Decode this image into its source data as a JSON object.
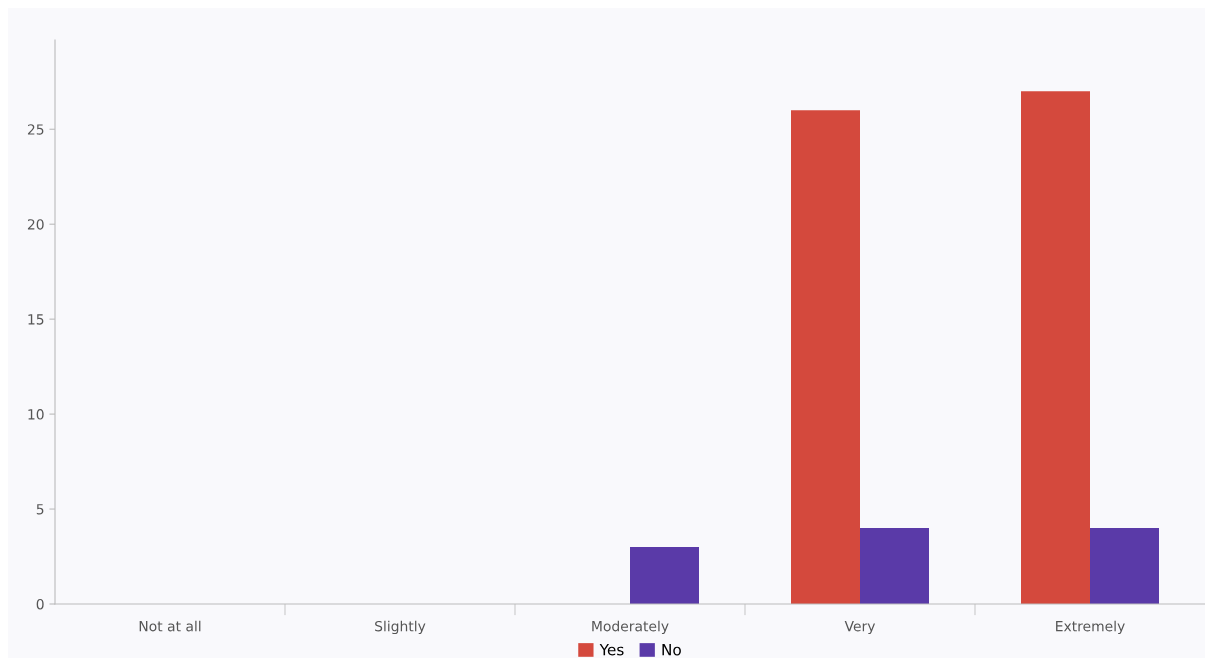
{
  "chart_data": {
    "type": "bar",
    "categories": [
      "Not at all",
      "Slightly",
      "Moderately",
      "Very",
      "Extremely"
    ],
    "series": [
      {
        "name": "Yes",
        "color": "#d4493d",
        "values": [
          0,
          0,
          0,
          26,
          27
        ]
      },
      {
        "name": "No",
        "color": "#5a3aa8",
        "values": [
          0,
          0,
          3,
          4,
          4
        ]
      }
    ],
    "ylim": [
      0,
      29.7
    ],
    "yticks": [
      0,
      5,
      10,
      15,
      20,
      25
    ],
    "grid": false,
    "legend": "bottom"
  }
}
